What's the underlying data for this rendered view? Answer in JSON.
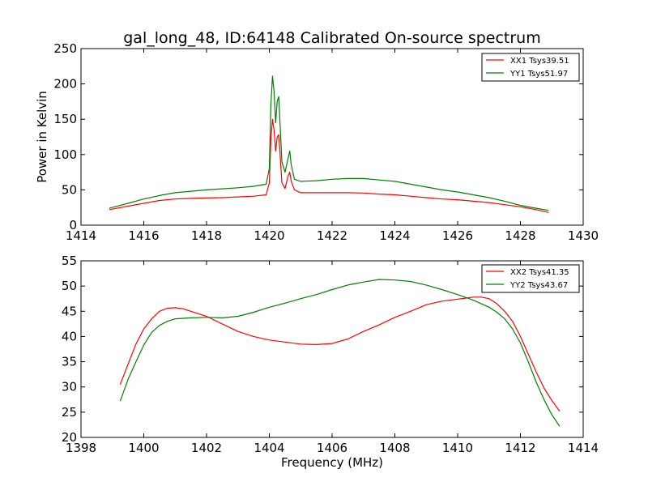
{
  "figure": {
    "background": "#ffffff"
  },
  "chart_data": [
    {
      "type": "line",
      "title": "gal_long_48, ID:64148 Calibrated On-source spectrum",
      "xlabel": "",
      "ylabel": "Power in Kelvin",
      "xlim": [
        1414,
        1430
      ],
      "ylim": [
        0,
        250
      ],
      "xticks": [
        1414,
        1416,
        1418,
        1420,
        1422,
        1424,
        1426,
        1428,
        1430
      ],
      "yticks": [
        0,
        50,
        100,
        150,
        200,
        250
      ],
      "grid": false,
      "legend_position": "top-right",
      "series": [
        {
          "name": "XX1 Tsys39.51",
          "color": "#ff0000",
          "x": [
            1414.9,
            1415.5,
            1416,
            1416.5,
            1417,
            1417.5,
            1418,
            1418.5,
            1419,
            1419.5,
            1419.9,
            1420.0,
            1420.05,
            1420.1,
            1420.15,
            1420.2,
            1420.25,
            1420.3,
            1420.35,
            1420.4,
            1420.5,
            1420.6,
            1420.65,
            1420.7,
            1420.8,
            1421,
            1421.5,
            1422,
            1422.5,
            1423,
            1423.5,
            1424,
            1424.5,
            1425,
            1425.5,
            1426,
            1426.5,
            1427,
            1427.5,
            1428,
            1428.5,
            1428.9
          ],
          "values": [
            22,
            27,
            31,
            35,
            37,
            38,
            38.5,
            39,
            40,
            41,
            43,
            60,
            120,
            150,
            135,
            105,
            125,
            128,
            95,
            60,
            52,
            70,
            75,
            62,
            50,
            46,
            46,
            46,
            46,
            45.5,
            44,
            43,
            41,
            39,
            37,
            36,
            34,
            32,
            29,
            26,
            22,
            18
          ]
        },
        {
          "name": "YY1 Tsys51.97",
          "color": "#008000",
          "x": [
            1414.9,
            1415.5,
            1416,
            1416.5,
            1417,
            1417.5,
            1418,
            1418.5,
            1419,
            1419.5,
            1419.9,
            1420.0,
            1420.05,
            1420.1,
            1420.15,
            1420.2,
            1420.25,
            1420.3,
            1420.35,
            1420.4,
            1420.5,
            1420.6,
            1420.65,
            1420.7,
            1420.8,
            1421,
            1421.5,
            1422,
            1422.5,
            1423,
            1423.5,
            1424,
            1424.5,
            1425,
            1425.5,
            1426,
            1426.5,
            1427,
            1427.5,
            1428,
            1428.5,
            1428.9
          ],
          "values": [
            24,
            31,
            37,
            42,
            46,
            48,
            50,
            51.5,
            53,
            55,
            58,
            80,
            170,
            211,
            190,
            145,
            175,
            182,
            135,
            90,
            75,
            95,
            105,
            85,
            65,
            62,
            63,
            65,
            66,
            66,
            64,
            62,
            58,
            54,
            50,
            47,
            43,
            39,
            34,
            28,
            24,
            21
          ]
        }
      ]
    },
    {
      "type": "line",
      "title": "",
      "xlabel": "Frequency (MHz)",
      "ylabel": "",
      "xlim": [
        1398,
        1414
      ],
      "ylim": [
        20,
        55
      ],
      "xticks": [
        1398,
        1400,
        1402,
        1404,
        1406,
        1408,
        1410,
        1412,
        1414
      ],
      "yticks": [
        20,
        25,
        30,
        35,
        40,
        45,
        50,
        55
      ],
      "grid": false,
      "legend_position": "top-right",
      "series": [
        {
          "name": "XX2 Tsys41.35",
          "color": "#ff0000",
          "x": [
            1399.25,
            1399.5,
            1399.75,
            1400,
            1400.25,
            1400.5,
            1400.75,
            1401,
            1401.25,
            1401.5,
            1401.75,
            1402,
            1402.5,
            1403,
            1403.5,
            1404,
            1404.5,
            1405,
            1405.5,
            1406,
            1406.5,
            1407,
            1407.5,
            1408,
            1408.5,
            1409,
            1409.5,
            1410,
            1410.25,
            1410.5,
            1410.75,
            1411,
            1411.25,
            1411.5,
            1411.75,
            1412,
            1412.25,
            1412.5,
            1412.75,
            1413,
            1413.25
          ],
          "values": [
            30.5,
            34.5,
            38.5,
            41.5,
            43.5,
            45,
            45.6,
            45.7,
            45.5,
            45,
            44.5,
            44,
            42.5,
            41,
            40,
            39.3,
            38.9,
            38.5,
            38.4,
            38.6,
            39.5,
            41,
            42.3,
            43.8,
            45,
            46.3,
            47,
            47.4,
            47.6,
            47.8,
            47.8,
            47.5,
            46.5,
            45,
            43,
            40,
            36.5,
            33,
            29.8,
            27.3,
            25.2
          ]
        },
        {
          "name": "YY2 Tsys43.67",
          "color": "#008000",
          "x": [
            1399.25,
            1399.5,
            1399.75,
            1400,
            1400.25,
            1400.5,
            1400.75,
            1401,
            1401.5,
            1402,
            1402.5,
            1403,
            1403.5,
            1404,
            1404.5,
            1405,
            1405.5,
            1406,
            1406.5,
            1407,
            1407.5,
            1408,
            1408.5,
            1409,
            1409.5,
            1410,
            1410.5,
            1411,
            1411.25,
            1411.5,
            1411.75,
            1412,
            1412.25,
            1412.5,
            1412.75,
            1413,
            1413.25
          ],
          "values": [
            27.2,
            31.5,
            35,
            38.3,
            40.8,
            42.2,
            43,
            43.5,
            43.7,
            43.8,
            43.7,
            44,
            44.8,
            45.8,
            46.6,
            47.5,
            48.3,
            49.3,
            50.2,
            50.8,
            51.3,
            51.2,
            50.9,
            50.2,
            49.3,
            48.3,
            47.2,
            45.8,
            44.8,
            43.5,
            41.5,
            38.7,
            35,
            31,
            27.5,
            24.5,
            22.2
          ]
        }
      ]
    }
  ]
}
